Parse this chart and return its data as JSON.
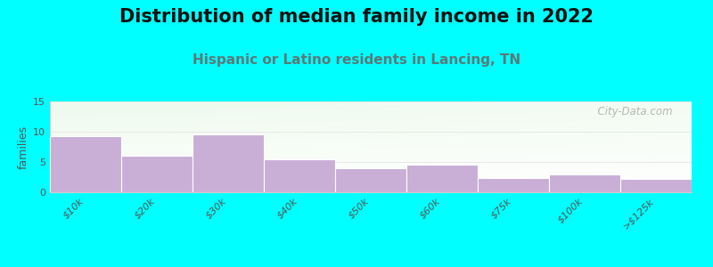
{
  "title": "Distribution of median family income in 2022",
  "subtitle": "Hispanic or Latino residents in Lancing, TN",
  "categories": [
    "$10k",
    "$20k",
    "$30k",
    "$40k",
    "$50k",
    "$60k",
    "$75k",
    "$100k",
    ">$125k"
  ],
  "values": [
    9.2,
    6.1,
    9.5,
    5.5,
    3.9,
    4.5,
    2.3,
    2.9,
    2.2
  ],
  "bar_color": "#c9aed6",
  "bar_edge_color": "#ffffff",
  "background_color": "#00ffff",
  "ylabel": "families",
  "ylim": [
    0,
    15
  ],
  "yticks": [
    0,
    5,
    10,
    15
  ],
  "title_fontsize": 15,
  "subtitle_fontsize": 11,
  "subtitle_color": "#5a7a7a",
  "title_color": "#111111",
  "watermark_text": "  City-Data.com",
  "watermark_color": "#aaaaaa",
  "tick_color": "#555555",
  "tick_fontsize": 8,
  "ylabel_fontsize": 9,
  "grid_color": "#e8e8e8",
  "spine_color": "#cccccc"
}
